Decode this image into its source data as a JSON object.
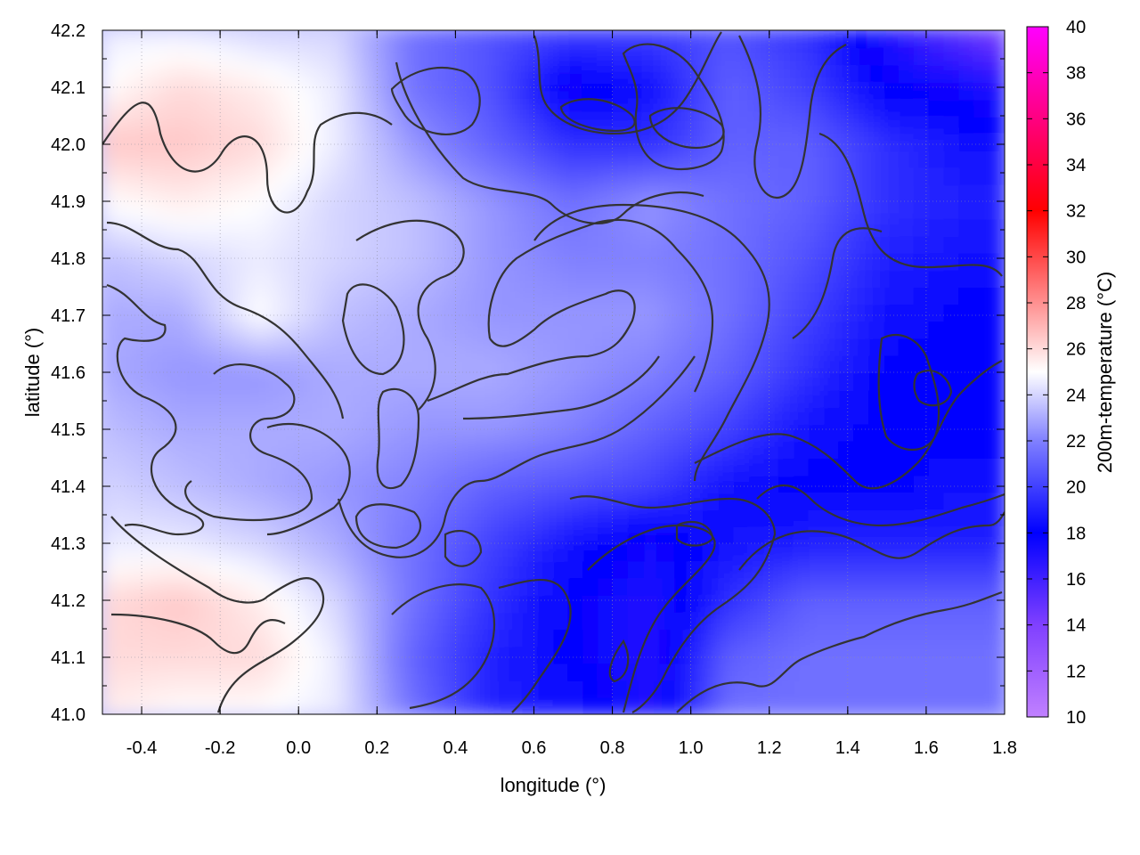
{
  "chart_data": {
    "type": "heatmap",
    "title": "",
    "xlabel": "longitude (°)",
    "ylabel": "latitude (°)",
    "colorbar_label": "200m-temperature (°C)",
    "xlim": [
      -0.5,
      1.8
    ],
    "ylim": [
      41.0,
      42.2
    ],
    "x_ticks": [
      -0.4,
      -0.2,
      0.0,
      0.2,
      0.4,
      0.6,
      0.8,
      1.0,
      1.2,
      1.4,
      1.6,
      1.8
    ],
    "x_tick_labels": [
      "-0.4",
      "-0.2",
      "0.0",
      "0.2",
      "0.4",
      "0.6",
      "0.8",
      "1.0",
      "1.2",
      "1.4",
      "1.6",
      "1.8"
    ],
    "y_ticks": [
      41.0,
      41.1,
      41.2,
      41.3,
      41.4,
      41.5,
      41.6,
      41.7,
      41.8,
      41.9,
      42.0,
      42.1,
      42.2
    ],
    "y_tick_labels": [
      "41.0",
      "41.1",
      "41.2",
      "41.3",
      "41.4",
      "41.5",
      "41.6",
      "41.7",
      "41.8",
      "41.9",
      "42.0",
      "42.1",
      "42.2"
    ],
    "colorbar_range": [
      10,
      40
    ],
    "colorbar_ticks": [
      10,
      12,
      14,
      16,
      18,
      20,
      22,
      24,
      26,
      28,
      30,
      32,
      34,
      36,
      38,
      40
    ],
    "colorbar_tick_labels": [
      "10",
      "12",
      "14",
      "16",
      "18",
      "20",
      "22",
      "24",
      "26",
      "28",
      "30",
      "32",
      "34",
      "36",
      "38",
      "40"
    ],
    "colormap": [
      {
        "value": 10,
        "color": "#c080ff"
      },
      {
        "value": 14,
        "color": "#8040ff"
      },
      {
        "value": 18,
        "color": "#0000ff"
      },
      {
        "value": 22,
        "color": "#8080ff"
      },
      {
        "value": 25,
        "color": "#ffffff"
      },
      {
        "value": 28,
        "color": "#ff9090"
      },
      {
        "value": 32,
        "color": "#ff0000"
      },
      {
        "value": 36,
        "color": "#ff0080"
      },
      {
        "value": 40,
        "color": "#ff00ff"
      }
    ],
    "grid": true,
    "field": {
      "lon": [
        -0.5,
        -0.3,
        -0.1,
        0.1,
        0.3,
        0.5,
        0.7,
        0.9,
        1.1,
        1.3,
        1.5,
        1.7,
        1.8
      ],
      "lat": [
        41.0,
        41.1,
        41.2,
        41.3,
        41.4,
        41.5,
        41.6,
        41.7,
        41.8,
        41.9,
        42.0,
        42.1,
        42.2
      ],
      "temperature": [
        [
          25.5,
          25.0,
          25.0,
          24.5,
          21.5,
          19.0,
          18.5,
          17.0,
          21.5,
          21.5,
          21.5,
          21.5,
          21.5
        ],
        [
          26.0,
          26.0,
          26.0,
          24.5,
          21.0,
          19.0,
          18.0,
          17.0,
          21.0,
          21.5,
          21.5,
          21.5,
          21.5
        ],
        [
          26.0,
          26.5,
          25.5,
          24.0,
          21.5,
          19.5,
          18.0,
          17.0,
          19.5,
          21.0,
          21.0,
          21.0,
          21.0
        ],
        [
          24.5,
          24.5,
          24.0,
          23.0,
          21.5,
          20.0,
          18.5,
          17.5,
          18.5,
          19.0,
          19.0,
          19.0,
          19.0
        ],
        [
          24.0,
          23.5,
          23.0,
          22.5,
          22.0,
          21.0,
          20.5,
          20.0,
          18.5,
          18.0,
          18.0,
          18.5,
          18.5
        ],
        [
          23.5,
          23.0,
          23.0,
          23.0,
          22.5,
          22.5,
          22.0,
          21.0,
          20.0,
          18.5,
          18.0,
          18.0,
          18.0
        ],
        [
          23.0,
          22.5,
          22.5,
          23.0,
          23.0,
          23.0,
          22.5,
          22.0,
          21.0,
          19.5,
          18.0,
          18.0,
          18.0
        ],
        [
          23.0,
          23.0,
          25.0,
          23.5,
          23.0,
          22.5,
          22.5,
          22.5,
          21.5,
          20.0,
          18.5,
          18.0,
          18.0
        ],
        [
          23.5,
          24.0,
          24.5,
          24.0,
          23.5,
          22.5,
          22.0,
          22.0,
          21.5,
          20.5,
          19.0,
          18.5,
          18.5
        ],
        [
          25.0,
          25.5,
          25.0,
          24.0,
          23.5,
          22.5,
          21.5,
          22.5,
          21.5,
          21.0,
          19.5,
          19.0,
          19.0
        ],
        [
          26.5,
          26.5,
          26.0,
          24.5,
          22.5,
          21.0,
          19.5,
          19.5,
          21.0,
          21.0,
          19.5,
          18.5,
          18.5
        ],
        [
          25.0,
          26.0,
          25.5,
          24.5,
          21.5,
          20.5,
          17.5,
          18.5,
          21.0,
          20.0,
          18.0,
          17.5,
          17.0
        ],
        [
          24.5,
          24.5,
          24.0,
          24.0,
          21.5,
          20.5,
          20.0,
          20.0,
          20.5,
          19.5,
          17.0,
          15.0,
          14.0
        ]
      ]
    },
    "contour_lines": true
  }
}
